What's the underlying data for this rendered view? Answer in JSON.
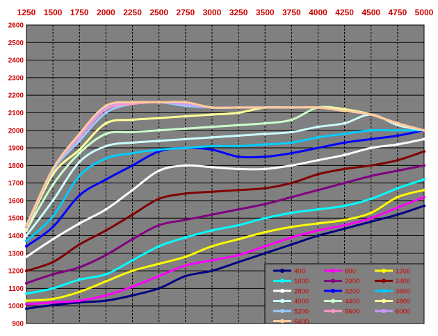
{
  "chart_data": {
    "type": "line",
    "title": "",
    "xlabel": "",
    "ylabel": "",
    "x_axis_position": "top",
    "x": [
      1250,
      1500,
      1750,
      2000,
      2250,
      2500,
      2750,
      3000,
      3250,
      3500,
      3750,
      4000,
      4250,
      4500,
      4750,
      5000
    ],
    "x_tick_labels": [
      "1250",
      "1500",
      "1750",
      "2000",
      "2250",
      "2500",
      "2750",
      "3000",
      "3250",
      "3500",
      "3750",
      "4000",
      "4250",
      "4500",
      "4750",
      "5000"
    ],
    "xlim": [
      1250,
      5000
    ],
    "ylim": [
      900,
      2600
    ],
    "y_ticks": [
      900,
      1000,
      1100,
      1200,
      1300,
      1400,
      1500,
      1600,
      1700,
      1800,
      1900,
      2000,
      2100,
      2200,
      2300,
      2400,
      2500,
      2600
    ],
    "y_tick_labels": [
      "900",
      "1000",
      "1100",
      "1200",
      "1300",
      "1400",
      "1500",
      "1600",
      "1700",
      "1800",
      "1900",
      "2000",
      "2100",
      "2200",
      "2300",
      "2400",
      "2500",
      "2600"
    ],
    "grid": true,
    "legend_position": "bottom-right",
    "colors": {
      "plot_background": "#808080",
      "tick_label": "#cc0000",
      "legend_background": "#808080",
      "legend_text": "#cc0000"
    },
    "series": [
      {
        "name": "400",
        "color": "#000080",
        "values": [
          985,
          1005,
          1020,
          1030,
          1060,
          1100,
          1170,
          1200,
          1250,
          1300,
          1350,
          1400,
          1440,
          1480,
          1520,
          1570
        ]
      },
      {
        "name": "800",
        "color": "#ff00ff",
        "values": [
          1010,
          1020,
          1030,
          1060,
          1110,
          1170,
          1230,
          1260,
          1290,
          1340,
          1390,
          1430,
          1460,
          1500,
          1560,
          1620
        ]
      },
      {
        "name": "1200",
        "color": "#ffff00",
        "values": [
          1030,
          1040,
          1080,
          1140,
          1200,
          1240,
          1280,
          1340,
          1380,
          1420,
          1450,
          1470,
          1490,
          1530,
          1620,
          1660
        ]
      },
      {
        "name": "1600",
        "color": "#00ffff",
        "values": [
          1070,
          1100,
          1150,
          1180,
          1260,
          1340,
          1390,
          1430,
          1460,
          1500,
          1530,
          1550,
          1570,
          1610,
          1670,
          1720
        ]
      },
      {
        "name": "2000",
        "color": "#800080",
        "values": [
          1130,
          1180,
          1220,
          1290,
          1380,
          1460,
          1490,
          1520,
          1550,
          1580,
          1620,
          1660,
          1700,
          1740,
          1770,
          1800
        ]
      },
      {
        "name": "2400",
        "color": "#800000",
        "values": [
          1200,
          1250,
          1350,
          1430,
          1520,
          1610,
          1640,
          1650,
          1660,
          1670,
          1700,
          1750,
          1780,
          1800,
          1830,
          1880
        ]
      },
      {
        "name": "2800",
        "color": "#ffffff",
        "values": [
          1280,
          1380,
          1470,
          1550,
          1660,
          1770,
          1800,
          1790,
          1780,
          1780,
          1800,
          1830,
          1860,
          1900,
          1920,
          1950
        ]
      },
      {
        "name": "3200",
        "color": "#0000ff",
        "values": [
          1340,
          1450,
          1630,
          1720,
          1800,
          1880,
          1900,
          1890,
          1850,
          1850,
          1870,
          1900,
          1930,
          1950,
          1970,
          2000
        ]
      },
      {
        "name": "3600",
        "color": "#00ccff",
        "values": [
          1370,
          1510,
          1740,
          1840,
          1870,
          1890,
          1900,
          1910,
          1910,
          1920,
          1930,
          1960,
          1980,
          2000,
          2000,
          2000
        ]
      },
      {
        "name": "4000",
        "color": "#ccffff",
        "values": [
          1400,
          1600,
          1820,
          1910,
          1930,
          1940,
          1950,
          1960,
          1970,
          1980,
          1990,
          2020,
          2040,
          2090,
          2030,
          2000
        ]
      },
      {
        "name": "4400",
        "color": "#ccffcc",
        "values": [
          1430,
          1690,
          1870,
          1980,
          1990,
          2000,
          2010,
          2020,
          2030,
          2040,
          2060,
          2130,
          2120,
          2090,
          2040,
          2000
        ]
      },
      {
        "name": "4800",
        "color": "#ffff99",
        "values": [
          1440,
          1750,
          1890,
          2040,
          2060,
          2070,
          2080,
          2090,
          2100,
          2130,
          2130,
          2130,
          2120,
          2090,
          2040,
          2000
        ]
      },
      {
        "name": "5200",
        "color": "#99ccff",
        "values": [
          1450,
          1770,
          1940,
          2100,
          2150,
          2160,
          2140,
          2130,
          2130,
          2130,
          2130,
          2130,
          2110,
          2090,
          2040,
          2000
        ]
      },
      {
        "name": "5600",
        "color": "#ff99cc",
        "values": [
          1450,
          1780,
          1960,
          2120,
          2150,
          2160,
          2150,
          2130,
          2130,
          2130,
          2130,
          2130,
          2110,
          2090,
          2040,
          2000
        ]
      },
      {
        "name": "6000",
        "color": "#cc99ff",
        "values": [
          1450,
          1780,
          1970,
          2130,
          2160,
          2160,
          2150,
          2130,
          2130,
          2130,
          2130,
          2130,
          2110,
          2090,
          2040,
          2000
        ]
      },
      {
        "name": "6400",
        "color": "#ffcc99",
        "values": [
          1460,
          1780,
          1980,
          2140,
          2160,
          2160,
          2160,
          2130,
          2130,
          2130,
          2130,
          2130,
          2110,
          2090,
          2040,
          2000
        ]
      }
    ]
  }
}
